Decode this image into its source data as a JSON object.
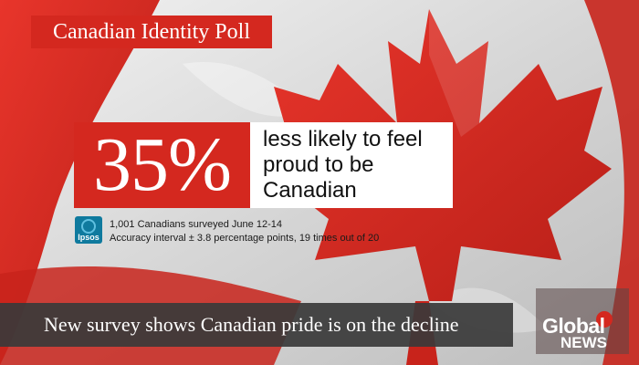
{
  "title": "Canadian Identity Poll",
  "stat": {
    "percent": "35%",
    "description": "less likely to feel proud to be Canadian"
  },
  "source": {
    "logo_text": "Ipsos",
    "line1": "1,001 Canadians surveyed June 12-14",
    "line2": "Accuracy interval ± 3.8 percentage points, 19 times out of 20"
  },
  "headline": "New survey shows Canadian pride is on the decline",
  "brand": {
    "line1": "Global",
    "line2": "NEWS"
  },
  "colors": {
    "red": "#d4281f",
    "flag_white": "#e4e4e4",
    "bar": "#3a3a3a"
  },
  "icons": [
    "canadian-flag-background",
    "maple-leaf-icon",
    "ipsos-logo-icon",
    "global-news-logo-icon"
  ]
}
